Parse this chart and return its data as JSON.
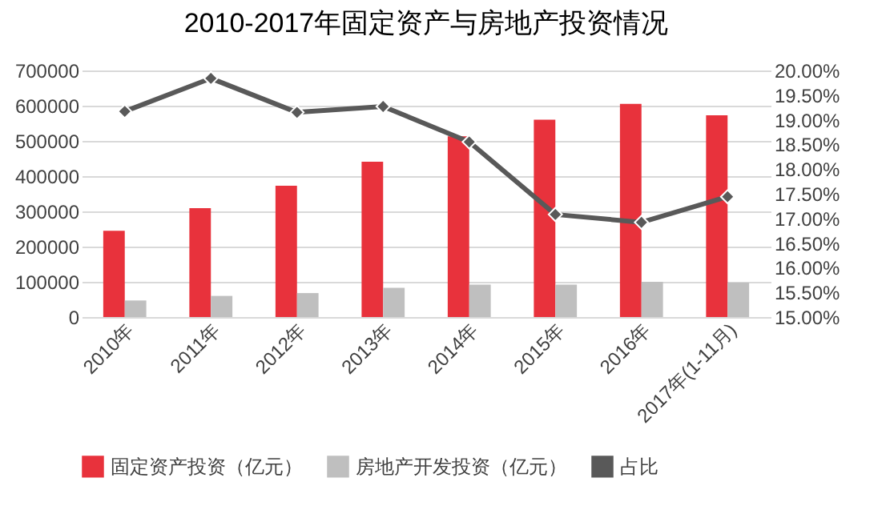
{
  "chart_data": {
    "type": "bar",
    "title": "2010-2017年固定资产与房地产投资情况",
    "categories": [
      "2010年",
      "2011年",
      "2012年",
      "2013年",
      "2014年",
      "2015年",
      "2016年",
      "2017年(1-11月)"
    ],
    "series": [
      {
        "name": "固定资产投资（亿元）",
        "color": "#e8323c",
        "values": [
          245000,
          309000,
          373000,
          441000,
          513000,
          560000,
          605000,
          573000
        ]
      },
      {
        "name": "房地产开发投资（亿元）",
        "color": "#bfbfbf",
        "values": [
          47000,
          60000,
          68000,
          83000,
          92000,
          92000,
          100000,
          98000
        ]
      },
      {
        "name": "占比",
        "type": "line",
        "axis": "y2",
        "color": "#595959",
        "values": [
          19.17,
          19.84,
          19.15,
          19.27,
          18.55,
          17.08,
          16.92,
          17.44
        ]
      }
    ],
    "ylim": [
      0,
      700000
    ],
    "yticks": [
      0,
      100000,
      200000,
      300000,
      400000,
      500000,
      600000,
      700000
    ],
    "y2lim": [
      15,
      20
    ],
    "y2ticks": [
      {
        "value": 15,
        "label": "15.00%"
      },
      {
        "value": 15.5,
        "label": "15.50%"
      },
      {
        "value": 16,
        "label": "16.00%"
      },
      {
        "value": 16.5,
        "label": "16.50%"
      },
      {
        "value": 17,
        "label": "17.00%"
      },
      {
        "value": 17.5,
        "label": "17.50%"
      },
      {
        "value": 18,
        "label": "18.00%"
      },
      {
        "value": 18.5,
        "label": "18.50%"
      },
      {
        "value": 19,
        "label": "19.00%"
      },
      {
        "value": 19.5,
        "label": "19.50%"
      },
      {
        "value": 20,
        "label": "20.00%"
      }
    ],
    "grid": "y",
    "legend": "bottom",
    "marker": "diamond",
    "line_style": "solid"
  }
}
